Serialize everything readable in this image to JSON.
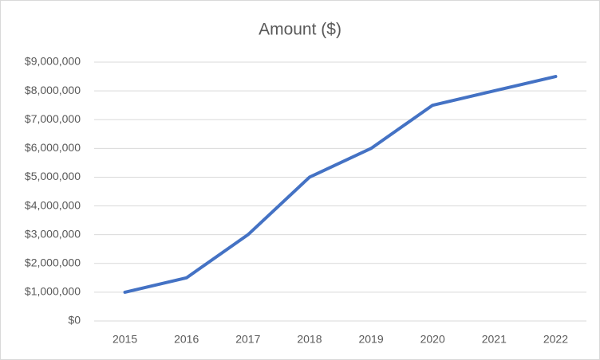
{
  "chart_data": {
    "type": "line",
    "title": "Amount ($)",
    "categories": [
      "2015",
      "2016",
      "2017",
      "2018",
      "2019",
      "2020",
      "2021",
      "2022"
    ],
    "series": [
      {
        "name": "Amount ($)",
        "color": "#4472c4",
        "values": [
          1000000,
          1500000,
          3000000,
          5000000,
          6000000,
          7500000,
          8000000,
          8500000
        ]
      }
    ],
    "ylim": [
      0,
      9000000
    ],
    "yticks": [
      {
        "value": 0,
        "label": "$0"
      },
      {
        "value": 1000000,
        "label": "$1,000,000"
      },
      {
        "value": 2000000,
        "label": "$2,000,000"
      },
      {
        "value": 3000000,
        "label": "$3,000,000"
      },
      {
        "value": 4000000,
        "label": "$4,000,000"
      },
      {
        "value": 5000000,
        "label": "$5,000,000"
      },
      {
        "value": 6000000,
        "label": "$6,000,000"
      },
      {
        "value": 7000000,
        "label": "$7,000,000"
      },
      {
        "value": 8000000,
        "label": "$8,000,000"
      },
      {
        "value": 9000000,
        "label": "$9,000,000"
      }
    ],
    "grid": true
  }
}
